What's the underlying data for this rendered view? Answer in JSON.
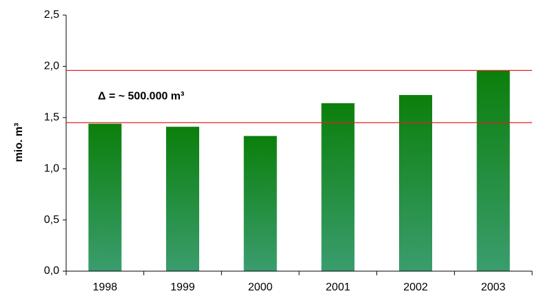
{
  "chart_data": {
    "type": "bar",
    "ylabel": "mio. m³",
    "annotation": "Δ = ~ 500.000 m³",
    "categories": [
      "1998",
      "1999",
      "2000",
      "2001",
      "2002",
      "2003"
    ],
    "values": [
      1.44,
      1.41,
      1.32,
      1.64,
      1.72,
      1.96
    ],
    "color": "#0b7f0b",
    "ylim": [
      0,
      2.5
    ],
    "yticks": [
      {
        "value": 0,
        "label": "0,0"
      },
      {
        "value": 0.5,
        "label": "0,5"
      },
      {
        "value": 1,
        "label": "1,0"
      },
      {
        "value": 1.5,
        "label": "1,5"
      },
      {
        "value": 2,
        "label": "2,0"
      },
      {
        "value": 2.5,
        "label": "2,5"
      }
    ],
    "reference_lines": [
      {
        "value": 1.96,
        "color": "#e02020"
      },
      {
        "value": 1.45,
        "color": "#e02020"
      }
    ]
  }
}
